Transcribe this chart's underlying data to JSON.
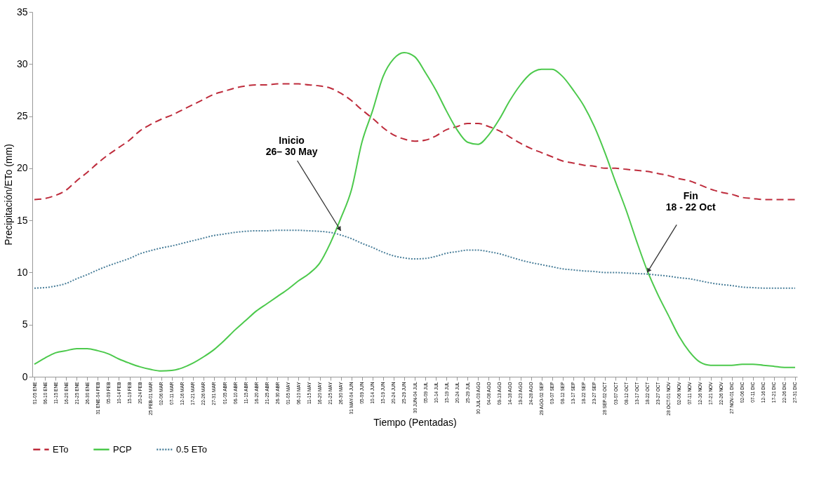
{
  "chart_data": {
    "type": "line",
    "xlabel": "Tiempo (Pentadas)",
    "ylabel": "Precipitación/ETo (mm)",
    "categories": [
      "01-05 ENE",
      "06-10 ENE",
      "11-15 ENE",
      "16-20 ENE",
      "21-25 ENE",
      "26-30 ENE",
      "31 ENE-04 FEB",
      "05-09 FEB",
      "10-14 FEB",
      "15-19 FEB",
      "20-24 FEB",
      "25 FEB-01 MAR",
      "02-06 MAR",
      "07-11 MAR",
      "12-16 MAR",
      "17-21 MAR",
      "22-26 MAR",
      "27-31 MAR",
      "01-05 ABR",
      "06-10 ABR",
      "11-15 ABR",
      "16-20 ABR",
      "21-25 ABR",
      "26-30 ABR",
      "01-05 MAY",
      "06-10 MAY",
      "11-15 MAY",
      "16-20 MAY",
      "21-25 MAY",
      "26-30 MAY",
      "31 MAY-04 JUN",
      "05-09 JUN",
      "10-14 JUN",
      "15-19 JUN",
      "20-24 JUN",
      "25-29 JUN",
      "30 JUN-04 JUL",
      "05-09 JUL",
      "10-14 JUL",
      "15-19 JUL",
      "20-24 JUL",
      "25-29 JUL",
      "30 JUL-03 AGO",
      "04-08 AGO",
      "09-13 AGO",
      "14-18 AGO",
      "19-23 AGO",
      "24-28 AGO",
      "29 AGO-02 SEP",
      "03-07 SEP",
      "08-12 SEP",
      "13-17 SEP",
      "18-22 SEP",
      "23-27 SEP",
      "28 SEP-02 OCT",
      "03-07 OCT",
      "08-12 OCT",
      "13-17 OCT",
      "18-22 OCT",
      "23-27 OCT",
      "28 OCT-01 NOV",
      "02-06 NOV",
      "07-11 NOV",
      "12-16 NOV",
      "17-21 NOV",
      "22-26 NOV",
      "27 NOV-01 DIC",
      "02-06 DIC",
      "07-11 DIC",
      "12-16 DIC",
      "17-21 DIC",
      "22-26 DIC",
      "27-31 DIC"
    ],
    "series": [
      {
        "name": "ETo",
        "color": "#be2c3c",
        "line_style": "dashed",
        "values": [
          17.0,
          17.1,
          17.4,
          17.9,
          18.8,
          19.6,
          20.5,
          21.3,
          22.0,
          22.7,
          23.6,
          24.2,
          24.7,
          25.1,
          25.6,
          26.1,
          26.6,
          27.1,
          27.4,
          27.7,
          27.9,
          28.0,
          28.0,
          28.1,
          28.1,
          28.1,
          28.0,
          27.9,
          27.7,
          27.2,
          26.5,
          25.6,
          24.8,
          23.9,
          23.2,
          22.8,
          22.6,
          22.7,
          23.1,
          23.7,
          24.0,
          24.3,
          24.3,
          24.0,
          23.6,
          23.0,
          22.4,
          21.9,
          21.5,
          21.1,
          20.7,
          20.5,
          20.3,
          20.2,
          20.0,
          20.0,
          19.9,
          19.8,
          19.7,
          19.5,
          19.3,
          19.0,
          18.8,
          18.4,
          18.0,
          17.7,
          17.5,
          17.2,
          17.1,
          17.0,
          17.0,
          17.0,
          17.0
        ]
      },
      {
        "name": "PCP",
        "color": "#4cc94c",
        "line_style": "solid",
        "values": [
          1.2,
          1.8,
          2.3,
          2.5,
          2.7,
          2.7,
          2.5,
          2.2,
          1.7,
          1.3,
          0.95,
          0.7,
          0.55,
          0.6,
          0.85,
          1.3,
          1.9,
          2.6,
          3.5,
          4.5,
          5.4,
          6.3,
          7.0,
          7.7,
          8.4,
          9.2,
          9.9,
          10.9,
          12.8,
          15.2,
          17.9,
          22.5,
          25.5,
          28.8,
          30.5,
          31.1,
          30.7,
          29.2,
          27.5,
          25.5,
          23.7,
          22.5,
          22.3,
          23.2,
          24.7,
          26.5,
          28.0,
          29.1,
          29.5,
          29.5,
          28.8,
          27.5,
          26.0,
          24.0,
          21.5,
          18.7,
          16.0,
          13.0,
          10.2,
          7.9,
          5.9,
          3.9,
          2.4,
          1.4,
          1.1,
          1.1,
          1.1,
          1.2,
          1.2,
          1.1,
          1.0,
          0.9,
          0.9
        ]
      },
      {
        "name": "0.5 ETo",
        "color": "#4a7f9a",
        "line_style": "dotted",
        "values": [
          8.5,
          8.55,
          8.7,
          8.95,
          9.4,
          9.8,
          10.25,
          10.65,
          11.0,
          11.35,
          11.8,
          12.1,
          12.35,
          12.55,
          12.8,
          13.05,
          13.3,
          13.55,
          13.7,
          13.85,
          13.95,
          14.0,
          14.0,
          14.05,
          14.05,
          14.05,
          14.0,
          13.95,
          13.85,
          13.6,
          13.25,
          12.8,
          12.4,
          11.95,
          11.6,
          11.4,
          11.3,
          11.35,
          11.55,
          11.85,
          12.0,
          12.15,
          12.15,
          12.0,
          11.8,
          11.5,
          11.2,
          10.95,
          10.75,
          10.55,
          10.35,
          10.25,
          10.15,
          10.1,
          10.0,
          10.0,
          9.95,
          9.9,
          9.85,
          9.75,
          9.65,
          9.5,
          9.4,
          9.2,
          9.0,
          8.85,
          8.75,
          8.6,
          8.55,
          8.5,
          8.5,
          8.5,
          8.5
        ]
      }
    ],
    "ylim": [
      0,
      35
    ],
    "yticks": [
      0,
      5,
      10,
      15,
      20,
      25,
      30,
      35
    ],
    "grid": false,
    "legend": "bottom",
    "annotations": [
      {
        "text": "Inicio\n26– 30 May",
        "x": "26-30 MAY",
        "y": 14
      },
      {
        "text": "Fin\n18 - 22 Oct",
        "x": "18-22 OCT",
        "y": 10
      }
    ]
  }
}
